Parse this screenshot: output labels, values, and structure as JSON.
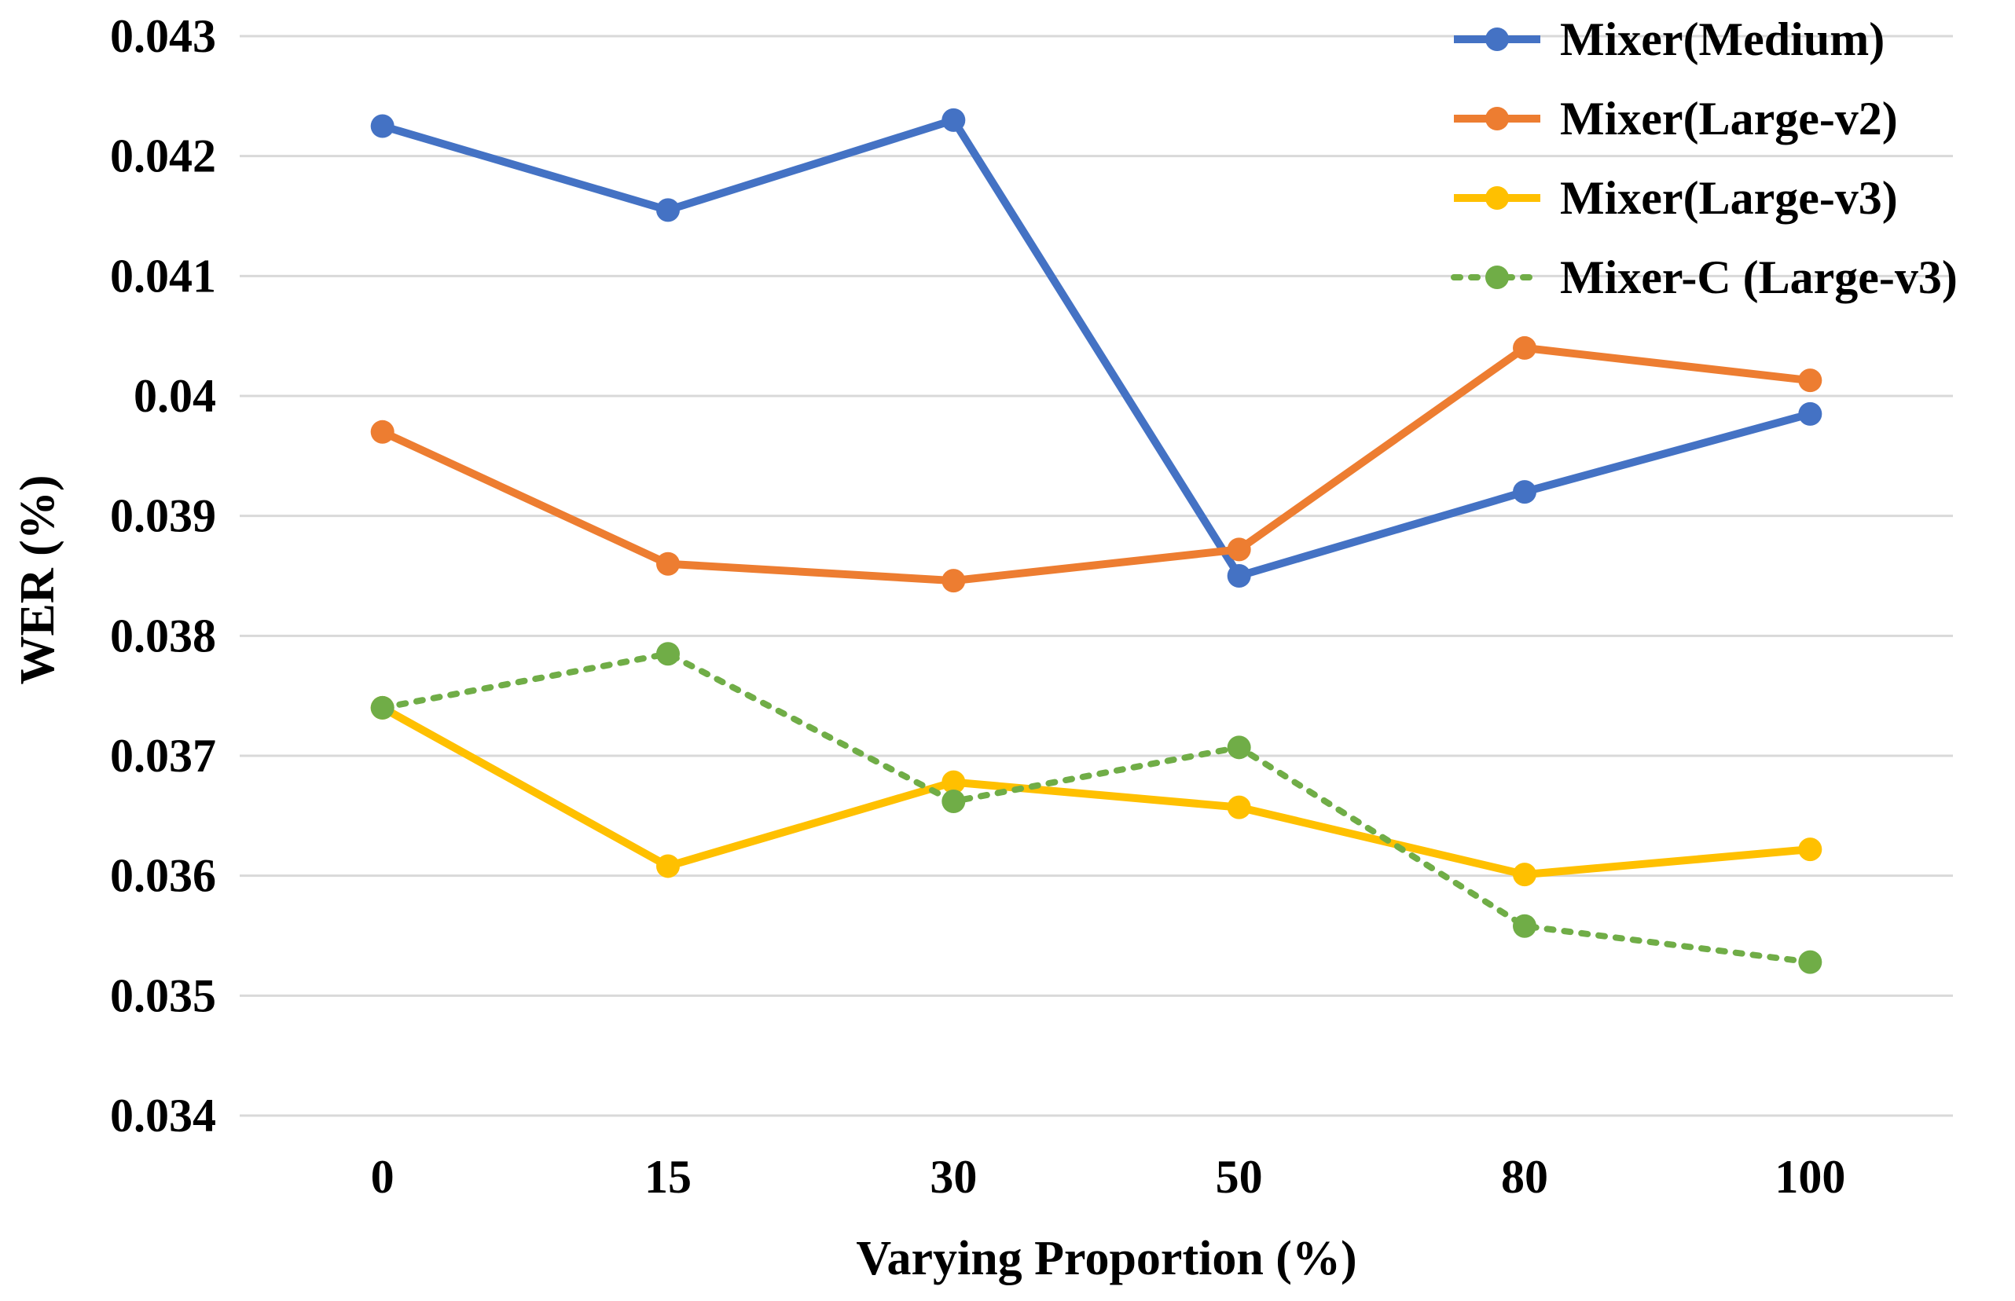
{
  "chart_data": {
    "type": "line",
    "title": "",
    "xlabel": "Varying Proportion (%)",
    "ylabel": "WER (%)",
    "categories": [
      "0",
      "15",
      "30",
      "50",
      "80",
      "100"
    ],
    "ylim": [
      0.034,
      0.043
    ],
    "yticks": [
      "0.034",
      "0.035",
      "0.036",
      "0.037",
      "0.038",
      "0.039",
      "0.04",
      "0.041",
      "0.042",
      "0.043"
    ],
    "grid": true,
    "legend_position": "top-right",
    "series": [
      {
        "name": "Mixer(Medium)",
        "color": "#4472c4",
        "dash": "solid",
        "values": [
          0.04225,
          0.04155,
          0.0423,
          0.0385,
          0.0392,
          0.03985
        ]
      },
      {
        "name": "Mixer(Large-v2)",
        "color": "#ed7d31",
        "dash": "solid",
        "values": [
          0.0397,
          0.0386,
          0.03846,
          0.03872,
          0.0404,
          0.04013
        ]
      },
      {
        "name": "Mixer(Large-v3)",
        "color": "#ffc000",
        "dash": "solid",
        "values": [
          0.0374,
          0.03608,
          0.03678,
          0.03657,
          0.03601,
          0.03622
        ]
      },
      {
        "name": "Mixer-C (Large-v3)",
        "color": "#70ad47",
        "dash": "dotted",
        "values": [
          0.0374,
          0.03785,
          0.03662,
          0.03707,
          0.03558,
          0.03528
        ]
      }
    ]
  }
}
